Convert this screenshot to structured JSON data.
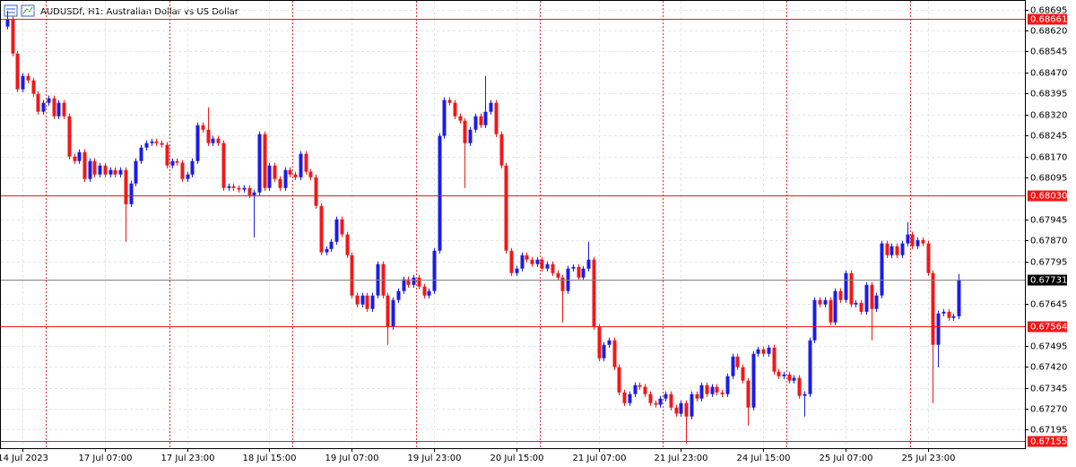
{
  "chart_data": {
    "type": "candlestick",
    "title": "AUDUSDf, H1:  Australian Dollar vs US Dollar",
    "categories": [
      null,
      null,
      null,
      "14 Jul 2023",
      null,
      null,
      null,
      null,
      null,
      null,
      null,
      null,
      null,
      null,
      null,
      null,
      null,
      null,
      null,
      "17 Jul 07:00",
      null,
      null,
      null,
      null,
      null,
      null,
      null,
      null,
      null,
      null,
      null,
      null,
      null,
      null,
      null,
      "17 Jul 23:00",
      null,
      null,
      null,
      null,
      null,
      null,
      null,
      null,
      null,
      null,
      null,
      null,
      null,
      null,
      null,
      "18 Jul 15:00",
      null,
      null,
      null,
      null,
      null,
      null,
      null,
      null,
      null,
      null,
      null,
      null,
      null,
      null,
      null,
      "19 Jul 07:00",
      null,
      null,
      null,
      null,
      null,
      null,
      null,
      null,
      null,
      null,
      null,
      null,
      null,
      null,
      null,
      "19 Jul 23:00",
      null,
      null,
      null,
      null,
      null,
      null,
      null,
      null,
      null,
      null,
      null,
      null,
      null,
      null,
      null,
      "20 Jul 15:00",
      null,
      null,
      null,
      null,
      null,
      null,
      null,
      null,
      null,
      null,
      null,
      null,
      null,
      null,
      null,
      "21 Jul 07:00",
      null,
      null,
      null,
      null,
      null,
      null,
      null,
      null,
      null,
      null,
      null,
      null,
      null,
      null,
      null,
      "21 Jul 23:00",
      null,
      null,
      null,
      null,
      null,
      null,
      null,
      null,
      null,
      null,
      null,
      null,
      null,
      null,
      null,
      "24 Jul 15:00",
      null,
      null,
      null,
      null,
      null,
      null,
      null,
      null,
      null,
      null,
      null,
      null,
      null,
      null,
      null,
      "25 Jul 07:00",
      null,
      null,
      null,
      null,
      null,
      null,
      null,
      null,
      null,
      null,
      null,
      null,
      null,
      null,
      null,
      "25 Jul 23:00",
      null,
      null,
      null,
      null,
      null,
      null
    ],
    "open": [
      0.68634,
      0.6866,
      0.68538,
      0.6841,
      0.68458,
      0.68442,
      0.68394,
      0.6833,
      0.68362,
      0.68378,
      0.68314,
      0.68362,
      0.68314,
      0.6817,
      0.68154,
      0.68186,
      0.6809,
      0.68154,
      0.68106,
      0.68138,
      0.68106,
      0.68122,
      0.68106,
      0.68122,
      0.68,
      0.68074,
      0.68154,
      0.68202,
      0.68218,
      0.68224,
      0.68218,
      0.68212,
      0.68138,
      0.68154,
      0.68148,
      0.6809,
      0.68106,
      0.68154,
      0.68282,
      0.68266,
      0.68218,
      0.68234,
      0.68218,
      0.68058,
      0.68064,
      0.68058,
      0.68052,
      0.68058,
      0.68032,
      0.68042,
      0.6825,
      0.68058,
      0.68138,
      0.6809,
      0.68058,
      0.68122,
      0.68106,
      0.68096,
      0.6818,
      0.68116,
      0.68096,
      0.67994,
      0.67828,
      0.6784,
      0.67866,
      0.67946,
      0.67892,
      0.67818,
      0.67674,
      0.67642,
      0.67674,
      0.67626,
      0.67674,
      0.67786,
      0.67674,
      0.67562,
      0.67658,
      0.6769,
      0.67732,
      0.67712,
      0.67738,
      0.67706,
      0.67674,
      0.6769,
      0.67834,
      0.68244,
      0.68372,
      0.68362,
      0.68314,
      0.68298,
      0.68218,
      0.68266,
      0.68314,
      0.68282,
      0.6833,
      0.68362,
      0.6825,
      0.68138,
      0.67834,
      0.67754,
      0.6777,
      0.67818,
      0.67802,
      0.67786,
      0.67802,
      0.6777,
      0.67786,
      0.67754,
      0.67738,
      0.6769,
      0.6777,
      0.67776,
      0.67738,
      0.6777,
      0.67802,
      0.67562,
      0.6745,
      0.67498,
      0.67514,
      0.67418,
      0.67328,
      0.6729,
      0.67322,
      0.67354,
      0.67348,
      0.67322,
      0.6729,
      0.67284,
      0.67306,
      0.67322,
      0.67274,
      0.67252,
      0.6729,
      0.67242,
      0.67322,
      0.67306,
      0.67354,
      0.67322,
      0.67348,
      0.67328,
      0.67322,
      0.67386,
      0.67456,
      0.67418,
      0.6737,
      0.67274,
      0.67466,
      0.67482,
      0.67466,
      0.67488,
      0.67402,
      0.67386,
      0.67392,
      0.6737,
      0.6738,
      0.67316,
      0.67322,
      0.67514,
      0.67658,
      0.67642,
      0.67658,
      0.67578,
      0.6769,
      0.67658,
      0.67754,
      0.67642,
      0.67648,
      0.67616,
      0.67712,
      0.67626,
      0.67674,
      0.6786,
      0.67818,
      0.6785,
      0.67818,
      0.6786,
      0.67892,
      0.6785,
      0.67872,
      0.6786,
      0.67754,
      0.67498,
      0.6761,
      0.67616,
      0.67594,
      0.676
    ],
    "high": [
      0.6869,
      0.6867,
      0.68548,
      0.68468,
      0.68468,
      0.68452,
      0.68404,
      0.68372,
      0.68388,
      0.68388,
      0.68372,
      0.68372,
      0.68324,
      0.6818,
      0.68196,
      0.68196,
      0.68164,
      0.68164,
      0.68148,
      0.68148,
      0.68132,
      0.68132,
      0.68132,
      0.68132,
      0.68084,
      0.68164,
      0.68212,
      0.68228,
      0.68234,
      0.68234,
      0.68228,
      0.68222,
      0.68164,
      0.68164,
      0.68158,
      0.68116,
      0.68164,
      0.68292,
      0.68292,
      0.68346,
      0.68244,
      0.68244,
      0.68228,
      0.68074,
      0.68074,
      0.68068,
      0.68068,
      0.68068,
      0.68052,
      0.6826,
      0.6826,
      0.68148,
      0.68148,
      0.681,
      0.68132,
      0.68132,
      0.68116,
      0.6819,
      0.6819,
      0.68126,
      0.68106,
      0.68004,
      0.6785,
      0.67876,
      0.67956,
      0.67956,
      0.67902,
      0.67828,
      0.67684,
      0.67684,
      0.67684,
      0.67684,
      0.67796,
      0.67796,
      0.67684,
      0.67668,
      0.677,
      0.67742,
      0.67742,
      0.67748,
      0.67748,
      0.67716,
      0.677,
      0.67844,
      0.68254,
      0.68382,
      0.68382,
      0.68372,
      0.68324,
      0.68308,
      0.68276,
      0.68324,
      0.68324,
      0.68458,
      0.68372,
      0.68372,
      0.6826,
      0.68148,
      0.67844,
      0.6778,
      0.67828,
      0.67828,
      0.67812,
      0.67812,
      0.67812,
      0.67796,
      0.67796,
      0.67764,
      0.67748,
      0.6778,
      0.67786,
      0.67786,
      0.6778,
      0.67866,
      0.67812,
      0.67572,
      0.67508,
      0.67524,
      0.67524,
      0.67428,
      0.67338,
      0.67332,
      0.67364,
      0.67364,
      0.67358,
      0.67332,
      0.673,
      0.67316,
      0.67332,
      0.67332,
      0.67284,
      0.673,
      0.673,
      0.67332,
      0.67332,
      0.67364,
      0.67364,
      0.67358,
      0.67358,
      0.67338,
      0.67396,
      0.67466,
      0.67466,
      0.67428,
      0.6738,
      0.67476,
      0.67492,
      0.67492,
      0.67498,
      0.67498,
      0.67412,
      0.67402,
      0.67402,
      0.6739,
      0.6739,
      0.67332,
      0.67524,
      0.67668,
      0.67668,
      0.67668,
      0.67668,
      0.677,
      0.677,
      0.67764,
      0.67764,
      0.67658,
      0.67658,
      0.67722,
      0.67722,
      0.67684,
      0.6787,
      0.6787,
      0.6786,
      0.6786,
      0.6787,
      0.67936,
      0.67902,
      0.67882,
      0.67882,
      0.6787,
      0.67764,
      0.6762,
      0.67626,
      0.67626,
      0.6761,
      0.67751
    ],
    "low": [
      0.68624,
      0.68528,
      0.684,
      0.684,
      0.68432,
      0.68384,
      0.6832,
      0.6832,
      0.68352,
      0.68304,
      0.68304,
      0.68304,
      0.6816,
      0.68144,
      0.68144,
      0.6808,
      0.6808,
      0.68096,
      0.68096,
      0.68096,
      0.68096,
      0.68096,
      0.68096,
      0.67866,
      0.6799,
      0.68064,
      0.68144,
      0.68192,
      0.68208,
      0.68208,
      0.68202,
      0.68128,
      0.68128,
      0.68138,
      0.6808,
      0.6808,
      0.68096,
      0.68144,
      0.68256,
      0.68208,
      0.68208,
      0.68208,
      0.68048,
      0.68048,
      0.68048,
      0.68042,
      0.68042,
      0.68022,
      0.67882,
      0.68032,
      0.68048,
      0.68048,
      0.6808,
      0.68048,
      0.68048,
      0.68096,
      0.68086,
      0.68086,
      0.68106,
      0.68086,
      0.67984,
      0.67818,
      0.67818,
      0.6783,
      0.67856,
      0.67882,
      0.67808,
      0.67664,
      0.67632,
      0.67632,
      0.67616,
      0.67616,
      0.67664,
      0.67664,
      0.67498,
      0.67552,
      0.67648,
      0.6768,
      0.67702,
      0.67702,
      0.67696,
      0.67664,
      0.67664,
      0.6768,
      0.67824,
      0.68234,
      0.68352,
      0.68304,
      0.68288,
      0.68058,
      0.68208,
      0.68256,
      0.68272,
      0.68272,
      0.6832,
      0.6824,
      0.68128,
      0.67824,
      0.67744,
      0.67744,
      0.6776,
      0.67792,
      0.67776,
      0.67776,
      0.6776,
      0.6776,
      0.67744,
      0.67728,
      0.67578,
      0.6768,
      0.6776,
      0.67728,
      0.67728,
      0.6776,
      0.67552,
      0.6744,
      0.6744,
      0.67488,
      0.67408,
      0.67318,
      0.6728,
      0.6728,
      0.67312,
      0.67338,
      0.67312,
      0.6728,
      0.67274,
      0.67274,
      0.67296,
      0.67264,
      0.67242,
      0.67242,
      0.67146,
      0.67232,
      0.67296,
      0.67296,
      0.67312,
      0.67312,
      0.67318,
      0.67312,
      0.67312,
      0.67376,
      0.67408,
      0.6736,
      0.6721,
      0.67264,
      0.67456,
      0.67456,
      0.67456,
      0.67392,
      0.67376,
      0.67376,
      0.6736,
      0.6736,
      0.67306,
      0.67242,
      0.67312,
      0.67504,
      0.67632,
      0.67632,
      0.67568,
      0.67568,
      0.67648,
      0.67648,
      0.67632,
      0.67632,
      0.67606,
      0.67606,
      0.67514,
      0.67616,
      0.67664,
      0.67808,
      0.67808,
      0.67808,
      0.67808,
      0.6785,
      0.6784,
      0.6784,
      0.6785,
      0.67744,
      0.6729,
      0.67418,
      0.676,
      0.67584,
      0.67584,
      0.6759
    ],
    "close": [
      0.6866,
      0.68538,
      0.6841,
      0.68458,
      0.68442,
      0.68394,
      0.6833,
      0.68362,
      0.68378,
      0.68314,
      0.68362,
      0.68314,
      0.6817,
      0.68154,
      0.68186,
      0.6809,
      0.68154,
      0.68106,
      0.68138,
      0.68106,
      0.68122,
      0.68106,
      0.68122,
      0.68,
      0.68074,
      0.68154,
      0.68202,
      0.68218,
      0.68224,
      0.68218,
      0.68212,
      0.68138,
      0.68154,
      0.68148,
      0.6809,
      0.68106,
      0.68154,
      0.68282,
      0.68266,
      0.68218,
      0.68234,
      0.68218,
      0.68058,
      0.68064,
      0.68058,
      0.68052,
      0.68058,
      0.68032,
      0.68042,
      0.6825,
      0.68058,
      0.68138,
      0.6809,
      0.68058,
      0.68122,
      0.68106,
      0.68096,
      0.6818,
      0.68116,
      0.68096,
      0.67994,
      0.67828,
      0.6784,
      0.67866,
      0.67946,
      0.67892,
      0.67818,
      0.67674,
      0.67642,
      0.67674,
      0.67626,
      0.67674,
      0.67786,
      0.67674,
      0.67562,
      0.67658,
      0.6769,
      0.67732,
      0.67712,
      0.67738,
      0.67706,
      0.67674,
      0.6769,
      0.67834,
      0.68244,
      0.68372,
      0.68362,
      0.68314,
      0.68298,
      0.68218,
      0.68266,
      0.68314,
      0.68282,
      0.6833,
      0.68362,
      0.6825,
      0.68138,
      0.67834,
      0.67754,
      0.6777,
      0.67818,
      0.67802,
      0.67786,
      0.67802,
      0.6777,
      0.67786,
      0.67754,
      0.67738,
      0.6769,
      0.6777,
      0.67776,
      0.67738,
      0.6777,
      0.67802,
      0.67562,
      0.6745,
      0.67498,
      0.67514,
      0.67418,
      0.67328,
      0.6729,
      0.67322,
      0.67354,
      0.67348,
      0.67322,
      0.6729,
      0.67284,
      0.67306,
      0.67322,
      0.67274,
      0.67252,
      0.6729,
      0.67242,
      0.67322,
      0.67306,
      0.67354,
      0.67322,
      0.67348,
      0.67328,
      0.67322,
      0.67386,
      0.67456,
      0.67418,
      0.6737,
      0.67274,
      0.67466,
      0.67482,
      0.67466,
      0.67488,
      0.67402,
      0.67386,
      0.67392,
      0.6737,
      0.6738,
      0.67316,
      0.67322,
      0.67514,
      0.67658,
      0.67642,
      0.67658,
      0.67578,
      0.6769,
      0.67658,
      0.67754,
      0.67642,
      0.67648,
      0.67616,
      0.67712,
      0.67626,
      0.67674,
      0.6786,
      0.67818,
      0.6785,
      0.67818,
      0.6786,
      0.67892,
      0.6785,
      0.67872,
      0.6786,
      0.67754,
      0.67498,
      0.6761,
      0.67616,
      0.67594,
      0.676,
      0.67731
    ],
    "up_color": "#1c1ce6",
    "down_color": "#f01818",
    "ylim": [
      0.67129,
      0.68729
    ],
    "yticks": [
      0.68695,
      {
        "value": 0.6862,
        "label": "0.68620"
      },
      0.68545,
      {
        "value": 0.6847,
        "label": "0.68470"
      },
      0.68395,
      {
        "value": 0.6832,
        "label": "0.68320"
      },
      0.68245,
      {
        "value": 0.6817,
        "label": "0.68170"
      },
      0.68095,
      0.67945,
      {
        "value": 0.6787,
        "label": "0.67870"
      },
      0.67795,
      0.67645,
      0.67495,
      {
        "value": 0.6742,
        "label": "0.67420"
      },
      0.67345,
      {
        "value": 0.6727,
        "label": "0.67270"
      },
      0.67195
    ],
    "levels": [
      {
        "value": 0.68661,
        "label": "0.68661",
        "color": "#f01818"
      },
      {
        "value": 0.6803,
        "label": "0.68030",
        "color": "#f01818"
      },
      {
        "value": 0.67731,
        "label": "0.67731",
        "color": "#000000"
      },
      {
        "value": 0.67564,
        "label": "0.67564",
        "color": "#f01818"
      },
      {
        "value": 0.67155,
        "label": "0.67155",
        "color": "#f01818"
      }
    ],
    "grid": true
  }
}
